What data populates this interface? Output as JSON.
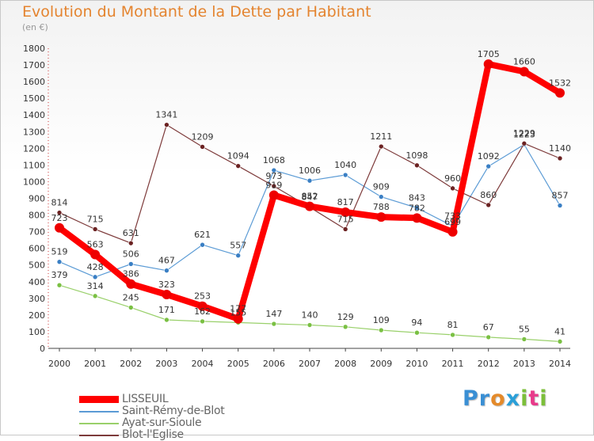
{
  "title": "Evolution du Montant de la Dette par Habitant",
  "subtitle": "(en €)",
  "logo": {
    "text": "Proxiti",
    "letter_colors": [
      "#3a8fd4",
      "#3a8fd4",
      "#e48a2a",
      "#2a9fd8",
      "#7cbf3a",
      "#e83a8a",
      "#7cbf3a"
    ]
  },
  "chart_data": {
    "type": "line",
    "x": [
      2000,
      2001,
      2002,
      2003,
      2004,
      2005,
      2006,
      2007,
      2008,
      2009,
      2010,
      2011,
      2012,
      2013,
      2014
    ],
    "ylim": [
      0,
      1800
    ],
    "yticks": [
      0,
      100,
      200,
      300,
      400,
      500,
      600,
      700,
      800,
      900,
      1000,
      1100,
      1200,
      1300,
      1400,
      1500,
      1600,
      1700,
      1800
    ],
    "grid": false,
    "legend_position": "bottom-left",
    "series": [
      {
        "name": "Saint-Rémy-de-Blot",
        "color": "#5b9bd5",
        "point_color": "#3a7fc4",
        "line_width": 1.2,
        "marker_radius": 3,
        "values": [
          519,
          428,
          506,
          467,
          621,
          557,
          1068,
          1006,
          1040,
          909,
          843,
          733,
          1092,
          1223,
          857
        ],
        "labels": [
          "519",
          "428",
          "506",
          "467",
          "621",
          "557",
          "1068",
          "1006",
          "1040",
          "909",
          "843",
          "733",
          "1092",
          "1223",
          "857"
        ]
      },
      {
        "name": "Ayat-sur-Sioule",
        "color": "#99d06a",
        "point_color": "#7ac043",
        "line_width": 1.2,
        "marker_radius": 3,
        "values": [
          379,
          314,
          245,
          171,
          162,
          155,
          147,
          140,
          129,
          109,
          94,
          81,
          67,
          55,
          41
        ],
        "labels": [
          "379",
          "314",
          "245",
          "171",
          "162",
          "155",
          "147",
          "140",
          "129",
          "109",
          "94",
          "81",
          "67",
          "55",
          "41"
        ]
      },
      {
        "name": "Blot-l'Eglise",
        "color": "#7d3a3a",
        "point_color": "#6b2222",
        "line_width": 1.2,
        "marker_radius": 3,
        "values": [
          814,
          715,
          631,
          1341,
          1209,
          1094,
          973,
          847,
          715,
          1211,
          1098,
          960,
          860,
          1229,
          1140
        ],
        "labels": [
          "814",
          "715",
          "631",
          "1341",
          "1209",
          "1094",
          "973",
          "847",
          "715",
          "1211",
          "1098",
          "960",
          "860",
          "1229",
          "1140"
        ]
      },
      {
        "name": "LISSEUIL",
        "color": "#ff0000",
        "point_color": "#ee0000",
        "line_width": 8,
        "marker_radius": 6,
        "values": [
          723,
          563,
          386,
          323,
          253,
          177,
          919,
          852,
          817,
          788,
          782,
          699,
          1705,
          1660,
          1532
        ],
        "labels": [
          "723",
          "563",
          "386",
          "323",
          "253",
          "177",
          "919",
          "852",
          "817",
          "788",
          "782",
          "699",
          "1705",
          "1660",
          "1532"
        ]
      }
    ],
    "legend": [
      {
        "name": "LISSEUIL",
        "color": "#ff0000",
        "thickness": 9
      },
      {
        "name": "Saint-Rémy-de-Blot",
        "color": "#5b9bd5",
        "thickness": 2
      },
      {
        "name": "Ayat-sur-Sioule",
        "color": "#99d06a",
        "thickness": 2
      },
      {
        "name": "Blot-l'Eglise",
        "color": "#7d3a3a",
        "thickness": 2
      }
    ]
  }
}
